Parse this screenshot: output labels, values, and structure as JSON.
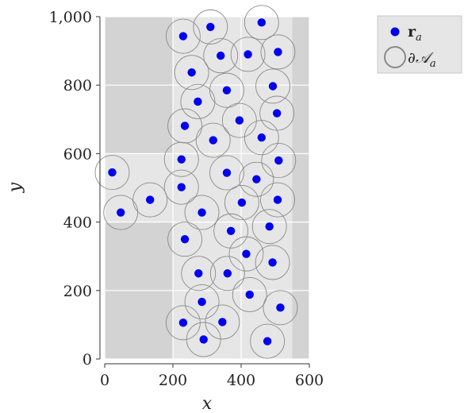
{
  "chart_data": {
    "type": "scatter",
    "xlabel": "x",
    "ylabel": "y",
    "xlim": [
      0,
      600
    ],
    "ylim": [
      0,
      1000
    ],
    "x_ticks": [
      0,
      200,
      400,
      600
    ],
    "x_tick_labels": [
      "0",
      "200",
      "400",
      "600"
    ],
    "y_ticks": [
      0,
      200,
      400,
      600,
      800,
      1000
    ],
    "y_tick_labels": [
      "0",
      "200",
      "400",
      "600",
      "800",
      "1,000"
    ],
    "grid": true,
    "legend_placement": "outside-top-right",
    "colors": {
      "point": "#0000ee",
      "circle": "#8a8a8a",
      "domain": "#e6e6e6",
      "outside": "#d3d3d3",
      "grid": "#ffffff"
    },
    "domain_regions": [
      {
        "name": "corridor",
        "x": [
          200,
          550
        ],
        "y": [
          0,
          1000
        ]
      },
      {
        "name": "inlet",
        "x": [
          0,
          200
        ],
        "y": [
          400,
          600
        ]
      }
    ],
    "circle_radius": 50,
    "legend": [
      {
        "symbol": "point",
        "label_main": "r",
        "label_sub": "a"
      },
      {
        "symbol": "circle",
        "label_main": "∂𝒜",
        "label_sub": "a"
      }
    ],
    "series": [
      {
        "name": "r_a",
        "points": [
          [
            310,
            970
          ],
          [
            460,
            983
          ],
          [
            230,
            943
          ],
          [
            340,
            886
          ],
          [
            420,
            890
          ],
          [
            508,
            897
          ],
          [
            255,
            837
          ],
          [
            358,
            785
          ],
          [
            493,
            797
          ],
          [
            273,
            752
          ],
          [
            395,
            697
          ],
          [
            505,
            718
          ],
          [
            235,
            681
          ],
          [
            318,
            639
          ],
          [
            460,
            647
          ],
          [
            225,
            583
          ],
          [
            510,
            580
          ],
          [
            358,
            544
          ],
          [
            22,
            545
          ],
          [
            445,
            525
          ],
          [
            225,
            502
          ],
          [
            133,
            465
          ],
          [
            402,
            457
          ],
          [
            507,
            465
          ],
          [
            47,
            428
          ],
          [
            285,
            428
          ],
          [
            370,
            374
          ],
          [
            483,
            387
          ],
          [
            235,
            350
          ],
          [
            415,
            307
          ],
          [
            492,
            282
          ],
          [
            275,
            250
          ],
          [
            360,
            250
          ],
          [
            425,
            188
          ],
          [
            285,
            167
          ],
          [
            515,
            150
          ],
          [
            230,
            106
          ],
          [
            345,
            108
          ],
          [
            290,
            57
          ],
          [
            477,
            52
          ]
        ]
      }
    ]
  }
}
